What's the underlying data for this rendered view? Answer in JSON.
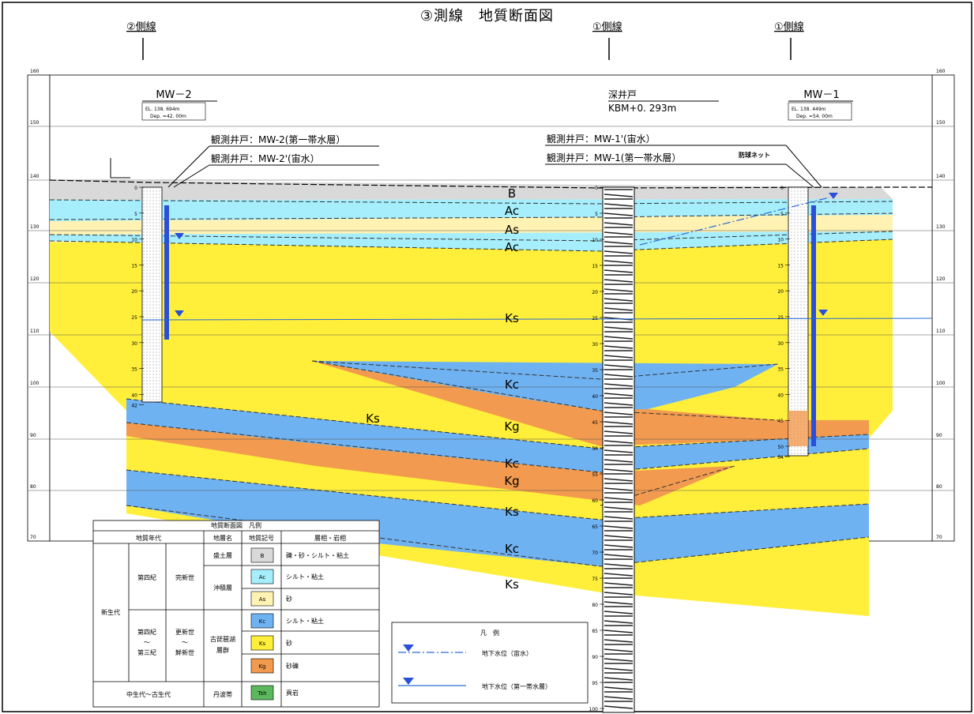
{
  "title": "③測線　地質断面図",
  "side_lines": [
    "②側線",
    "①側線",
    "①側線"
  ],
  "elevation_ticks": [
    "160",
    "150",
    "140",
    "130",
    "120",
    "110",
    "100",
    "90",
    "80",
    "70"
  ],
  "wells": {
    "mw2": {
      "name": "MW－2",
      "el": "EL. 138. 694m",
      "dep": "Dep. =42. 00m"
    },
    "deep": {
      "name": "深井戸",
      "kbm": "KBM+0. 293m"
    },
    "mw1": {
      "name": "MW－1",
      "el": "EL. 138. 449m",
      "dep": "Dep. =54. 00m"
    }
  },
  "callouts": {
    "mw2_first": "観測井戸：MW-2(第一帯水層）",
    "mw2_perched": "観測井戸：MW-2'(宙水）",
    "mw1_perched": "観測井戸：MW-1'(宙水）",
    "mw1_first": "観測井戸：MW-1(第一帯水層）",
    "net": "防球ネット"
  },
  "depth_ticks": {
    "mw2": [
      "0",
      "5",
      "10",
      "15",
      "20",
      "25",
      "30",
      "35",
      "40",
      "42"
    ],
    "deep": [
      "0",
      "5",
      "10",
      "15",
      "20",
      "25",
      "30",
      "35",
      "40",
      "45",
      "50",
      "55",
      "60",
      "65",
      "70",
      "75",
      "80",
      "85",
      "90",
      "95",
      "100"
    ],
    "mw1": [
      "0",
      "5",
      "10",
      "15",
      "20",
      "25",
      "30",
      "35",
      "40",
      "45",
      "50",
      "54"
    ]
  },
  "layer_labels": {
    "B": "B",
    "Ac": "Ac",
    "As": "As",
    "Ac2": "Ac",
    "Ks1": "Ks",
    "Kc1": "Kc",
    "Ks_left": "Ks",
    "Kg1": "Kg",
    "Kc2": "Kc",
    "Kg2": "Kg",
    "Ks2": "Ks",
    "Kc3": "Kc",
    "Ks3": "Ks"
  },
  "colors": {
    "B": "#d9d9d9",
    "Ac": "#a6eefc",
    "As": "#fff2b3",
    "Kc": "#6fb2f2",
    "Ks": "#ffef3a",
    "Kg": "#f29a4f",
    "Tsh": "#5cb85c"
  },
  "legend_table": {
    "title": "地質断面図　凡例",
    "headers": [
      "地質年代",
      "地層名",
      "地質記号",
      "層相・岩相"
    ],
    "era_cenozoic": "新生代",
    "era_meso": "中生代～古生代",
    "period_q": "第四紀",
    "epoch_holo": "完新世",
    "period_qt": [
      "第四紀",
      "～",
      "第三紀"
    ],
    "epoch_plio": [
      "更新世",
      "～",
      "鮮新世"
    ],
    "formations": {
      "fill": "盛土層",
      "alluvium": "沖積層",
      "kobiwako": [
        "古琵琶湖",
        "層群"
      ],
      "tamba": "丹波帯"
    },
    "rows": [
      {
        "sym": "B",
        "desc": "礫・砂・シルト・粘土"
      },
      {
        "sym": "Ac",
        "desc": "シルト・粘土"
      },
      {
        "sym": "As",
        "desc": "砂"
      },
      {
        "sym": "Kc",
        "desc": "シルト・粘土"
      },
      {
        "sym": "Ks",
        "desc": "砂"
      },
      {
        "sym": "Kg",
        "desc": "砂礫"
      },
      {
        "sym": "Tsh",
        "desc": "頁岩"
      }
    ]
  },
  "water_legend": {
    "title": "凡　例",
    "perched": "地下水位（宙水）",
    "first": "地下水位（第一帯水層）"
  }
}
